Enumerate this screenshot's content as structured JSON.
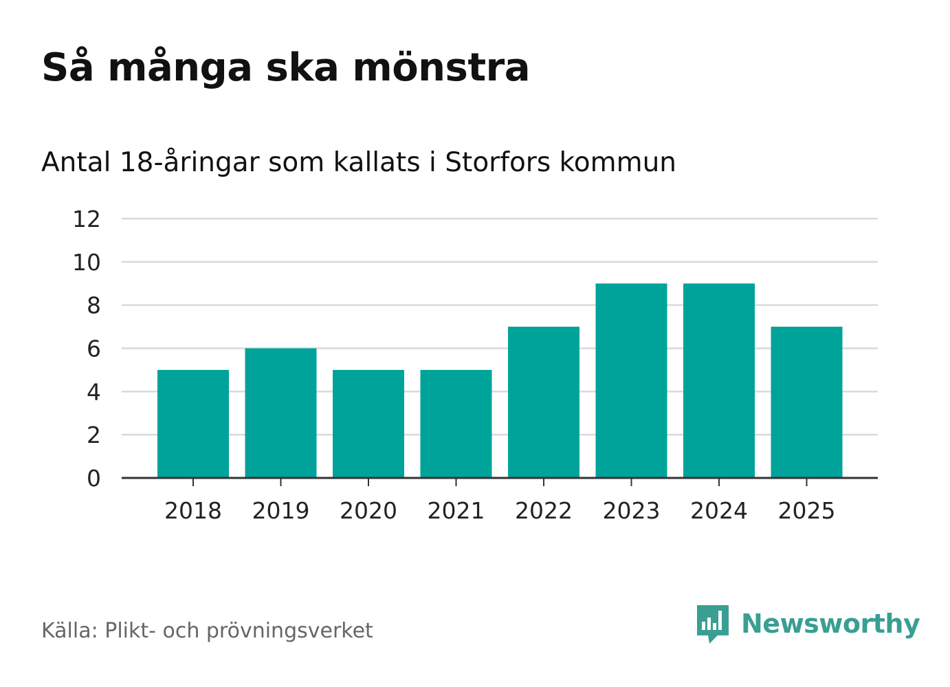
{
  "header": {
    "title": "Så många ska mönstra",
    "subtitle": "Antal 18-åringar som kallats i Storfors kommun"
  },
  "footer": {
    "source": "Källa: Plikt- och prövningsverket",
    "brand": "Newsworthy",
    "brand_icon": "chart-bubble-icon"
  },
  "colors": {
    "bar": "#00a39a",
    "grid": "#d9d9d9",
    "axis": "#333333",
    "brand": "#3a9e92"
  },
  "chart_data": {
    "type": "bar",
    "title": "Så många ska mönstra",
    "subtitle": "Antal 18-åringar som kallats i Storfors kommun",
    "categories": [
      "2018",
      "2019",
      "2020",
      "2021",
      "2022",
      "2023",
      "2024",
      "2025"
    ],
    "values": [
      5,
      6,
      5,
      5,
      7,
      9,
      9,
      7
    ],
    "ylim": [
      0,
      12
    ],
    "yticks": [
      0,
      2,
      4,
      6,
      8,
      10,
      12
    ],
    "xlabel": "",
    "ylabel": "",
    "grid": true,
    "legend": "none"
  }
}
